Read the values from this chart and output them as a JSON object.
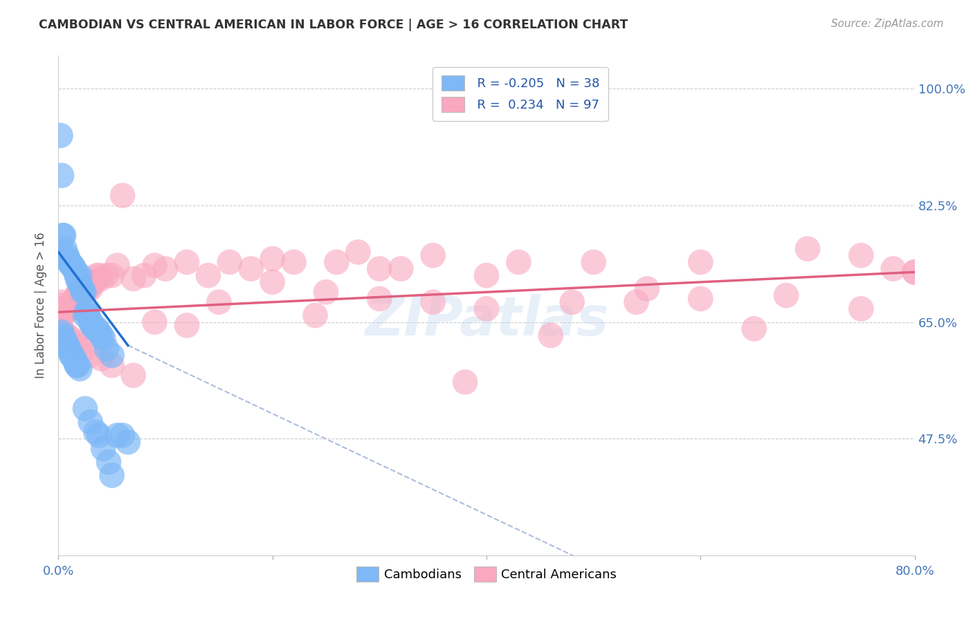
{
  "title": "CAMBODIAN VS CENTRAL AMERICAN IN LABOR FORCE | AGE > 16 CORRELATION CHART",
  "source": "Source: ZipAtlas.com",
  "ylabel": "In Labor Force | Age > 16",
  "x_min": 0.0,
  "x_max": 0.8,
  "y_min": 0.3,
  "y_max": 1.05,
  "y_ticks": [
    0.475,
    0.65,
    0.825,
    1.0
  ],
  "y_tick_labels": [
    "47.5%",
    "65.0%",
    "82.5%",
    "100.0%"
  ],
  "x_tick_positions": [
    0.0,
    0.2,
    0.4,
    0.6,
    0.8
  ],
  "x_tick_labels": [
    "0.0%",
    "",
    "",
    "",
    "80.0%"
  ],
  "legend_line1": "R = -0.205   N = 38",
  "legend_line2": "R =  0.234   N = 97",
  "cambodian_color": "#7EB8F7",
  "central_american_color": "#F9A8C0",
  "trendline1_color": "#2070D0",
  "trendline2_color": "#E06080",
  "trendline1_dashed_color": "#AABDDC",
  "watermark": "ZIPatlas",
  "camb_trend_x0": 0.0,
  "camb_trend_y0": 0.755,
  "camb_trend_x1": 0.065,
  "camb_trend_y1": 0.615,
  "camb_trend_dash_x1": 0.5,
  "camb_trend_dash_y1": 0.285,
  "cent_trend_x0": 0.0,
  "cent_trend_y0": 0.665,
  "cent_trend_x1": 0.8,
  "cent_trend_y1": 0.725,
  "cambodian_x": [
    0.002,
    0.003,
    0.004,
    0.005,
    0.006,
    0.007,
    0.008,
    0.009,
    0.01,
    0.012,
    0.013,
    0.015,
    0.016,
    0.017,
    0.018,
    0.019,
    0.02,
    0.021,
    0.022,
    0.023,
    0.024,
    0.025,
    0.026,
    0.027,
    0.028,
    0.03,
    0.031,
    0.032,
    0.034,
    0.036,
    0.038,
    0.04,
    0.042,
    0.045,
    0.05,
    0.055,
    0.06,
    0.065
  ],
  "cambodian_y": [
    0.93,
    0.87,
    0.78,
    0.78,
    0.76,
    0.745,
    0.75,
    0.745,
    0.74,
    0.735,
    0.735,
    0.73,
    0.725,
    0.72,
    0.715,
    0.71,
    0.72,
    0.705,
    0.7,
    0.695,
    0.695,
    0.66,
    0.665,
    0.665,
    0.66,
    0.65,
    0.648,
    0.645,
    0.64,
    0.64,
    0.635,
    0.63,
    0.625,
    0.61,
    0.6,
    0.48,
    0.48,
    0.47
  ],
  "cambodian_x_low": [
    0.003,
    0.004,
    0.005,
    0.006,
    0.007,
    0.008,
    0.009,
    0.01,
    0.012,
    0.013,
    0.015,
    0.016,
    0.017,
    0.018,
    0.02,
    0.025,
    0.03,
    0.035,
    0.038,
    0.042,
    0.047,
    0.05
  ],
  "cambodian_y_low": [
    0.635,
    0.63,
    0.625,
    0.62,
    0.62,
    0.615,
    0.61,
    0.61,
    0.6,
    0.6,
    0.595,
    0.59,
    0.585,
    0.585,
    0.58,
    0.52,
    0.5,
    0.485,
    0.48,
    0.46,
    0.44,
    0.42
  ],
  "central_american_x": [
    0.002,
    0.003,
    0.004,
    0.005,
    0.006,
    0.007,
    0.008,
    0.009,
    0.01,
    0.012,
    0.013,
    0.015,
    0.016,
    0.017,
    0.018,
    0.019,
    0.02,
    0.022,
    0.024,
    0.026,
    0.028,
    0.03,
    0.032,
    0.034,
    0.036,
    0.038,
    0.04,
    0.045,
    0.05,
    0.055,
    0.06,
    0.07,
    0.08,
    0.09,
    0.1,
    0.12,
    0.14,
    0.16,
    0.18,
    0.2,
    0.22,
    0.24,
    0.26,
    0.28,
    0.3,
    0.32,
    0.35,
    0.38,
    0.4,
    0.43,
    0.46,
    0.5,
    0.55,
    0.6,
    0.65,
    0.7,
    0.75,
    0.78,
    0.8
  ],
  "central_american_y": [
    0.68,
    0.675,
    0.67,
    0.67,
    0.665,
    0.665,
    0.67,
    0.67,
    0.67,
    0.67,
    0.68,
    0.685,
    0.685,
    0.69,
    0.69,
    0.69,
    0.695,
    0.695,
    0.695,
    0.7,
    0.7,
    0.7,
    0.71,
    0.71,
    0.72,
    0.72,
    0.715,
    0.72,
    0.72,
    0.735,
    0.84,
    0.715,
    0.72,
    0.735,
    0.73,
    0.74,
    0.72,
    0.74,
    0.73,
    0.745,
    0.74,
    0.66,
    0.74,
    0.755,
    0.73,
    0.73,
    0.75,
    0.56,
    0.72,
    0.74,
    0.63,
    0.74,
    0.7,
    0.74,
    0.64,
    0.76,
    0.75,
    0.73,
    0.725
  ],
  "central_american_x2": [
    0.003,
    0.005,
    0.008,
    0.012,
    0.016,
    0.02,
    0.025,
    0.03,
    0.04,
    0.05,
    0.07,
    0.09,
    0.12,
    0.15,
    0.2,
    0.25,
    0.3,
    0.35,
    0.4,
    0.48,
    0.54,
    0.6,
    0.68,
    0.75,
    0.8
  ],
  "central_american_y2": [
    0.64,
    0.635,
    0.63,
    0.625,
    0.62,
    0.615,
    0.61,
    0.6,
    0.595,
    0.585,
    0.57,
    0.65,
    0.645,
    0.68,
    0.71,
    0.695,
    0.685,
    0.68,
    0.67,
    0.68,
    0.68,
    0.685,
    0.69,
    0.67,
    0.725
  ],
  "figsize": [
    14.06,
    8.92
  ],
  "dpi": 100
}
